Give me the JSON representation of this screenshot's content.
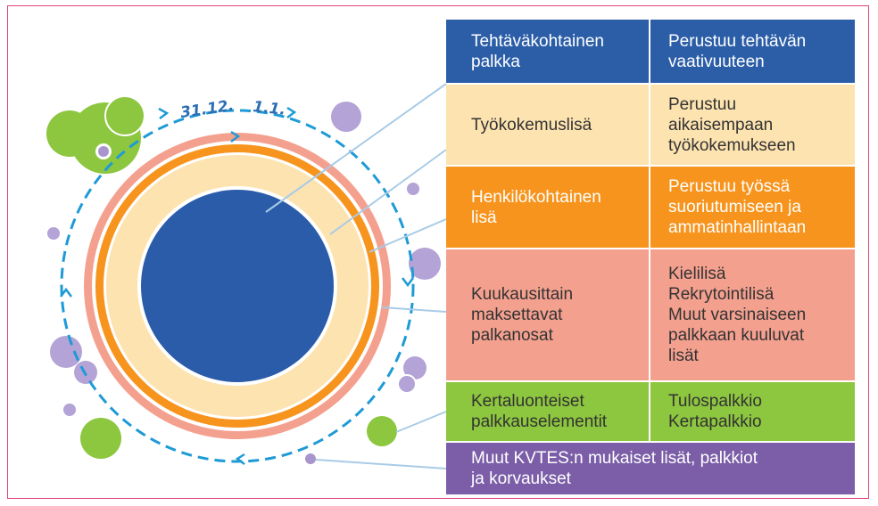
{
  "date_labels": [
    "31.12.",
    "1.1."
  ],
  "rows": [
    {
      "left": [
        "Tehtäväkohtainen",
        "palkka"
      ],
      "right": [
        "Perustuu tehtävän",
        "vaativuuteen"
      ]
    },
    {
      "left": [
        "Työkokemuslisä"
      ],
      "right": [
        "Perustuu",
        "aikaisempaan",
        "työkokemukseen"
      ]
    },
    {
      "left": [
        "Henkilökohtainen",
        "lisä"
      ],
      "right": [
        "Perustuu työssä",
        "suoriutumiseen ja",
        "ammatinhallintaan"
      ]
    },
    {
      "left": [
        "Kuukausittain",
        "maksettavat",
        "palkanosat"
      ],
      "right": [
        "Kielilisä",
        "Rekrytointilisä",
        "Muut varsinaiseen",
        "palkkaan kuuluvat",
        "lisät"
      ]
    },
    {
      "left": [
        "Kertaluonteiset",
        "palkkauselementit"
      ],
      "right": [
        "Tulospalkkio",
        "Kertapalkkio"
      ]
    }
  ],
  "footer": [
    "Muut KVTES:n mukaiset lisät, palkkiot",
    "ja korvaukset"
  ]
}
